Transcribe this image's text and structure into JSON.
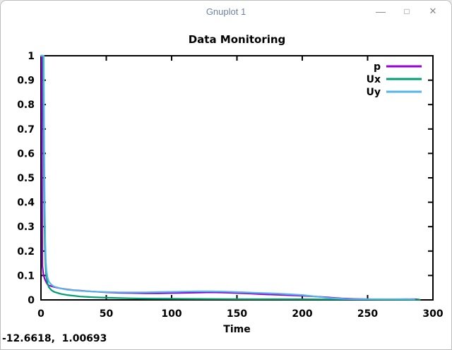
{
  "window": {
    "title": "Gnuplot 1",
    "controls": {
      "minimize": "—",
      "maximize": "□",
      "close": "✕"
    }
  },
  "statusbar": {
    "coordinates": "-12.6618,  1.00693"
  },
  "chart_data": {
    "type": "line",
    "title": "Data Monitoring",
    "xlabel": "Time",
    "ylabel": "",
    "xlim": [
      0,
      300
    ],
    "ylim": [
      0,
      1
    ],
    "grid": false,
    "legend_position": "top-right",
    "background": "#ffffff",
    "axis_color": "#000000",
    "text_color": "#000000",
    "xticks": {
      "values": [
        0,
        50,
        100,
        150,
        200,
        250,
        300
      ],
      "labels": [
        "0",
        "50",
        "100",
        "150",
        "200",
        "250",
        "300"
      ]
    },
    "yticks": {
      "values": [
        0,
        0.1,
        0.2,
        0.3,
        0.4,
        0.5,
        0.6,
        0.7,
        0.8,
        0.9,
        1
      ],
      "labels": [
        "0",
        "0.1",
        "0.2",
        "0.3",
        "0.4",
        "0.5",
        "0.6",
        "0.7",
        "0.8",
        "0.9",
        "1"
      ]
    },
    "series": [
      {
        "name": "p",
        "color": "#9400d3",
        "points": [
          [
            0,
            1
          ],
          [
            0.6,
            1
          ],
          [
            0.9,
            0.45
          ],
          [
            1.1,
            0.14
          ],
          [
            1.6,
            0.115
          ],
          [
            2,
            0.1
          ],
          [
            3,
            0.085
          ],
          [
            4,
            0.073
          ],
          [
            5,
            0.063
          ],
          [
            6,
            0.059
          ],
          [
            8,
            0.056
          ],
          [
            10,
            0.053
          ],
          [
            15,
            0.047
          ],
          [
            20,
            0.043
          ],
          [
            25,
            0.04
          ],
          [
            30,
            0.038
          ],
          [
            40,
            0.034
          ],
          [
            50,
            0.031
          ],
          [
            60,
            0.029
          ],
          [
            70,
            0.028
          ],
          [
            80,
            0.027
          ],
          [
            90,
            0.027
          ],
          [
            100,
            0.028
          ],
          [
            110,
            0.029
          ],
          [
            120,
            0.03
          ],
          [
            130,
            0.031
          ],
          [
            140,
            0.03
          ],
          [
            150,
            0.028
          ],
          [
            160,
            0.026
          ],
          [
            170,
            0.023
          ],
          [
            180,
            0.021
          ],
          [
            190,
            0.019
          ],
          [
            200,
            0.017
          ],
          [
            210,
            0.014
          ],
          [
            215,
            0.012
          ],
          [
            220,
            0.01
          ],
          [
            225,
            0.008
          ],
          [
            230,
            0.006
          ],
          [
            240,
            0.004
          ],
          [
            250,
            0.003
          ],
          [
            260,
            0.002
          ],
          [
            270,
            0.002
          ],
          [
            278,
            0.003
          ],
          [
            286,
            0.003
          ],
          [
            289,
            0.002
          ]
        ]
      },
      {
        "name": "Ux",
        "color": "#009e73",
        "points": [
          [
            0,
            1
          ],
          [
            1.6,
            1
          ],
          [
            2,
            0.73
          ],
          [
            2.3,
            0.5
          ],
          [
            2.6,
            0.33
          ],
          [
            3,
            0.22
          ],
          [
            3.5,
            0.14
          ],
          [
            4,
            0.1
          ],
          [
            5,
            0.068
          ],
          [
            6,
            0.052
          ],
          [
            8,
            0.04
          ],
          [
            10,
            0.033
          ],
          [
            15,
            0.025
          ],
          [
            20,
            0.02
          ],
          [
            25,
            0.017
          ],
          [
            30,
            0.014
          ],
          [
            40,
            0.011
          ],
          [
            50,
            0.009
          ],
          [
            60,
            0.0075
          ],
          [
            70,
            0.0065
          ],
          [
            80,
            0.0055
          ],
          [
            100,
            0.0045
          ],
          [
            120,
            0.004
          ],
          [
            140,
            0.0035
          ],
          [
            160,
            0.003
          ],
          [
            180,
            0.003
          ],
          [
            200,
            0.0025
          ],
          [
            220,
            0.002
          ],
          [
            240,
            0.002
          ],
          [
            260,
            0.0015
          ],
          [
            280,
            0.0012
          ],
          [
            290,
            0.001
          ]
        ]
      },
      {
        "name": "Uy",
        "color": "#56b4e9",
        "points": [
          [
            0,
            1
          ],
          [
            2.1,
            1
          ],
          [
            2.5,
            0.62
          ],
          [
            2.9,
            0.38
          ],
          [
            3.3,
            0.24
          ],
          [
            3.7,
            0.16
          ],
          [
            4.2,
            0.12
          ],
          [
            5,
            0.092
          ],
          [
            6,
            0.075
          ],
          [
            8,
            0.062
          ],
          [
            10,
            0.055
          ],
          [
            15,
            0.047
          ],
          [
            20,
            0.042
          ],
          [
            25,
            0.039
          ],
          [
            30,
            0.037
          ],
          [
            40,
            0.034
          ],
          [
            50,
            0.032
          ],
          [
            60,
            0.031
          ],
          [
            70,
            0.031
          ],
          [
            80,
            0.031
          ],
          [
            90,
            0.032
          ],
          [
            100,
            0.033
          ],
          [
            110,
            0.034
          ],
          [
            120,
            0.035
          ],
          [
            130,
            0.035
          ],
          [
            140,
            0.034
          ],
          [
            150,
            0.032
          ],
          [
            160,
            0.03
          ],
          [
            170,
            0.028
          ],
          [
            180,
            0.026
          ],
          [
            190,
            0.023
          ],
          [
            200,
            0.02
          ],
          [
            205,
            0.017
          ],
          [
            210,
            0.014
          ],
          [
            215,
            0.011
          ],
          [
            220,
            0.008
          ],
          [
            225,
            0.006
          ],
          [
            230,
            0.0045
          ],
          [
            235,
            0.0035
          ],
          [
            240,
            0.003
          ],
          [
            250,
            0.003
          ],
          [
            260,
            0.003
          ],
          [
            270,
            0.003
          ],
          [
            280,
            0.0028
          ],
          [
            286,
            0.002
          ]
        ]
      }
    ]
  }
}
